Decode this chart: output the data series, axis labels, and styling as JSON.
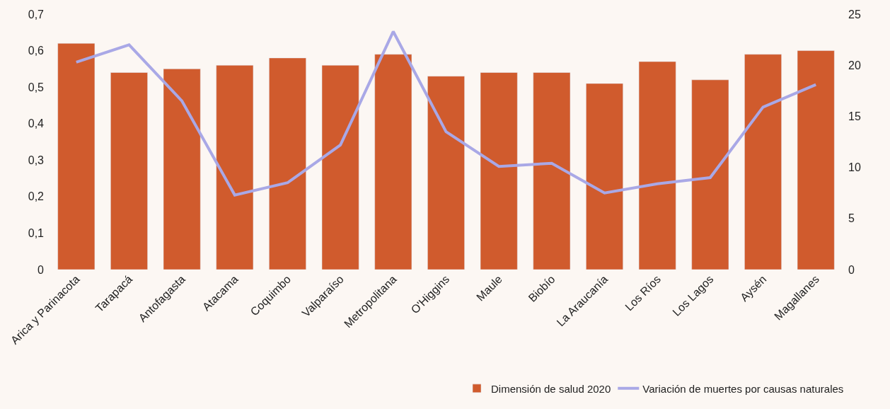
{
  "chart_data": {
    "type": "bar",
    "categories": [
      "Arica y Parinacota",
      "Tarapacá",
      "Antofagasta",
      "Atacama",
      "Coquimbo",
      "Valparaíso",
      "Metropolitana",
      "O'Higgins",
      "Maule",
      "Biobío",
      "La Araucanía",
      "Los Ríos",
      "Los Lagos",
      "Aysén",
      "Magallanes"
    ],
    "series": [
      {
        "name": "Dimensión de salud 2020",
        "color": "#d05b2d",
        "values": [
          0.62,
          0.54,
          0.55,
          0.56,
          0.58,
          0.56,
          0.59,
          0.53,
          0.54,
          0.54,
          0.51,
          0.57,
          0.52,
          0.59,
          0.6
        ]
      },
      {
        "name": "Variación de muertes por causas naturales",
        "color": "#a9a8e6",
        "type": "line",
        "axis": "y2",
        "values": [
          20.3,
          22.0,
          16.5,
          7.3,
          8.5,
          12.2,
          23.3,
          13.5,
          10.1,
          10.4,
          7.5,
          8.4,
          9.0,
          15.9,
          18.1
        ]
      }
    ],
    "ylim": [
      0,
      0.7
    ],
    "yticks": [
      {
        "value": 0,
        "label": "0"
      },
      {
        "value": 0.1,
        "label": "0,1"
      },
      {
        "value": 0.2,
        "label": "0,2"
      },
      {
        "value": 0.3,
        "label": "0,3"
      },
      {
        "value": 0.4,
        "label": "0,4"
      },
      {
        "value": 0.5,
        "label": "0,5"
      },
      {
        "value": 0.6,
        "label": "0,6"
      },
      {
        "value": 0.7,
        "label": "0,7"
      }
    ],
    "y2lim": [
      0,
      25
    ],
    "y2ticks": [
      0,
      5,
      10,
      15,
      20,
      25
    ],
    "grid": false,
    "legend": "bottom right",
    "marker": "none",
    "line_style": "solid"
  }
}
